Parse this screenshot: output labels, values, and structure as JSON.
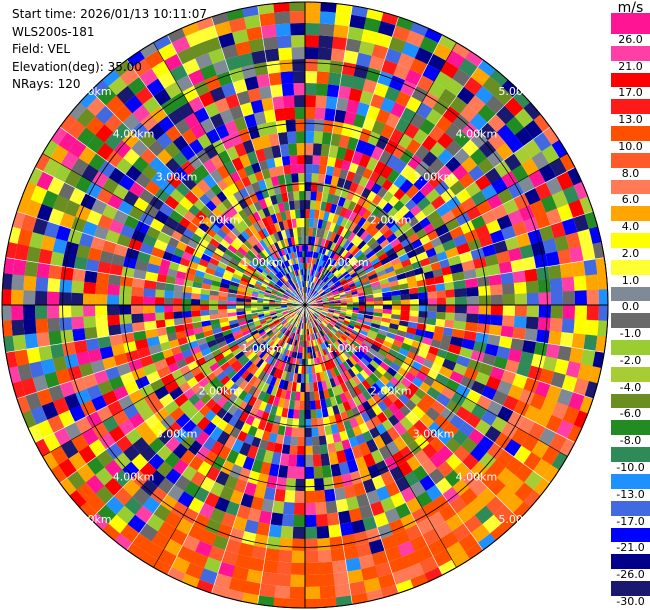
{
  "info": {
    "start_time": "Start time: 2026/01/13 10:11:07",
    "device": "WLS200s-181",
    "field": "Field: VEL",
    "elevation": "Elevation(deg): 35.00",
    "nrays": "NRays: 120"
  },
  "legend": {
    "unit": "m/s",
    "bins": [
      {
        "color": "#ff1493",
        "label": "26.0"
      },
      {
        "color": "#ff3fa5",
        "label": "21.0"
      },
      {
        "color": "#ff0000",
        "label": "17.0"
      },
      {
        "color": "#ff1a1a",
        "label": "13.0"
      },
      {
        "color": "#ff5000",
        "label": "10.0"
      },
      {
        "color": "#ff5a2a",
        "label": "8.0"
      },
      {
        "color": "#ff7a55",
        "label": "6.0"
      },
      {
        "color": "#ffa500",
        "label": "4.0"
      },
      {
        "color": "#ffff00",
        "label": "2.0"
      },
      {
        "color": "#ffff33",
        "label": "1.0"
      },
      {
        "color": "#808a96",
        "label": "0.0"
      },
      {
        "color": "#696969",
        "label": "-1.0"
      },
      {
        "color": "#9acd32",
        "label": "-2.0"
      },
      {
        "color": "#a8cc33",
        "label": "-4.0"
      },
      {
        "color": "#6b8e23",
        "label": "-6.0"
      },
      {
        "color": "#228b22",
        "label": "-8.0"
      },
      {
        "color": "#2e8b57",
        "label": "-10.0"
      },
      {
        "color": "#1e90ff",
        "label": "-13.0"
      },
      {
        "color": "#4169e1",
        "label": "-17.0"
      },
      {
        "color": "#0000ff",
        "label": "-21.0"
      },
      {
        "color": "#00008b",
        "label": "-26.0"
      },
      {
        "color": "#191970",
        "label": "-30.0"
      }
    ]
  },
  "chart_data": {
    "type": "heatmap",
    "projection": "polar-ppi",
    "field": "VEL",
    "units": "m/s",
    "nrays": 120,
    "elevation_deg": 35.0,
    "range_ring_labels": [
      "1.00km",
      "1.00km",
      "1.00km",
      "1.00km",
      "2.00km",
      "2.00km",
      "2.00km",
      "2.00km",
      "3.00km",
      "3.00km",
      "3.00km",
      "3.00km",
      "4.00km",
      "4.00km",
      "4.00km",
      "4.00km",
      "5.00km",
      "5.00km",
      "5.00km",
      "5.00km"
    ],
    "color_levels": [
      -30.0,
      -26.0,
      -21.0,
      -17.0,
      -13.0,
      -10.0,
      -8.0,
      -6.0,
      -4.0,
      -2.0,
      -1.0,
      0.0,
      1.0,
      2.0,
      4.0,
      6.0,
      8.0,
      10.0,
      13.0,
      17.0,
      21.0,
      26.0
    ],
    "notes": "Velocity field is noisy across all gates; outermost gates on the south/southeast side are dominated by orange-red (~8 to 10 m/s) and yellow-orange values."
  }
}
